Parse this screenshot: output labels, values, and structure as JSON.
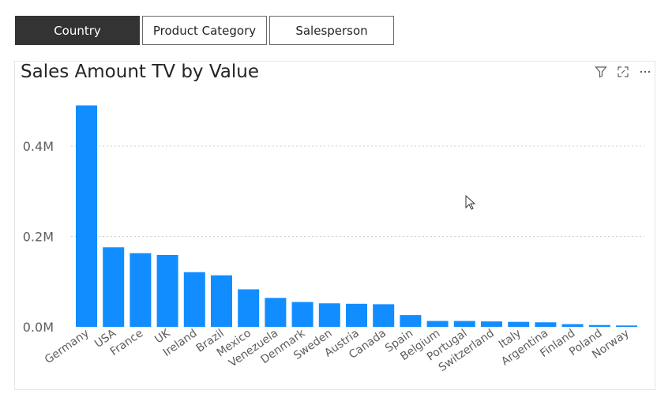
{
  "tabs": [
    {
      "label": "Country",
      "active": true
    },
    {
      "label": "Product Category",
      "active": false
    },
    {
      "label": "Salesperson",
      "active": false
    }
  ],
  "header_icons": [
    "filter-icon",
    "focus-mode-icon",
    "more-options-icon"
  ],
  "colors": {
    "bar": "#118DFF",
    "active_tab": "#333333",
    "grid": "#d0d0d0",
    "axis_text": "#605e5c"
  },
  "chart_data": {
    "type": "bar",
    "title": "Sales Amount TV by Value",
    "xlabel": "",
    "ylabel": "",
    "ylim": [
      0,
      0.5
    ],
    "yticks": [
      0,
      0.2,
      0.4
    ],
    "yticklabels": [
      "0.0M",
      "0.2M",
      "0.4M"
    ],
    "grid": true,
    "categories": [
      "Germany",
      "USA",
      "France",
      "UK",
      "Ireland",
      "Brazil",
      "Mexico",
      "Venezuela",
      "Denmark",
      "Sweden",
      "Austria",
      "Canada",
      "Spain",
      "Belgium",
      "Portugal",
      "Switzerland",
      "Italy",
      "Argentina",
      "Finland",
      "Poland",
      "Norway"
    ],
    "values": [
      0.49,
      0.176,
      0.163,
      0.159,
      0.121,
      0.114,
      0.083,
      0.064,
      0.055,
      0.052,
      0.051,
      0.05,
      0.026,
      0.013,
      0.013,
      0.012,
      0.011,
      0.01,
      0.006,
      0.004,
      0.003
    ]
  }
}
